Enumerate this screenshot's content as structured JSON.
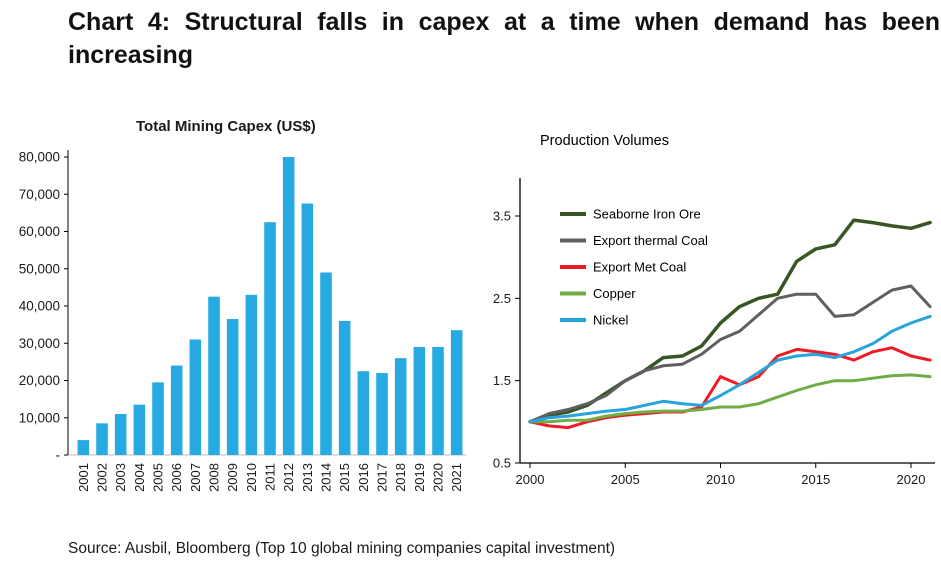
{
  "header": {
    "title": "Chart 4: Structural falls in capex at a time when demand has been increasing"
  },
  "source_note": "Source: Ausbil, Bloomberg (Top 10 global mining companies capital investment)",
  "chart_data": [
    {
      "type": "bar",
      "title": "Total Mining Capex (US$)",
      "categories": [
        "2001",
        "2002",
        "2003",
        "2004",
        "2005",
        "2006",
        "2007",
        "2008",
        "2009",
        "2010",
        "2011",
        "2012",
        "2013",
        "2014",
        "2015",
        "2016",
        "2017",
        "2018",
        "2019",
        "2020",
        "2021"
      ],
      "values": [
        4000,
        8500,
        11000,
        13500,
        19500,
        24000,
        31000,
        42500,
        36500,
        43000,
        62500,
        80000,
        67500,
        49000,
        36000,
        22500,
        22000,
        26000,
        29000,
        29000,
        33500
      ],
      "xlabel": "",
      "ylabel": "",
      "ylim": [
        0,
        80000
      ],
      "ytick_values": [
        0,
        10000,
        20000,
        30000,
        40000,
        50000,
        60000,
        70000,
        80000
      ],
      "ytick_labels": [
        "-",
        "10,000",
        "20,000",
        "30,000",
        "40,000",
        "50,000",
        "60,000",
        "70,000",
        "80,000"
      ],
      "grid": false,
      "bar_color": "#27AAE1"
    },
    {
      "type": "line",
      "title": "Production Volumes",
      "x_start": 2000,
      "x_end": 2021,
      "xtick_values": [
        2000,
        2005,
        2010,
        2015,
        2020
      ],
      "xtick_labels": [
        "2000",
        "2005",
        "2010",
        "2015",
        "2020"
      ],
      "ylim": [
        0.5,
        3.95
      ],
      "ytick_values": [
        0.5,
        1.5,
        2.5,
        3.5
      ],
      "ytick_labels": [
        "0.5",
        "1.5",
        "2.5",
        "3.5"
      ],
      "grid": false,
      "legend_position": "top-left",
      "series": [
        {
          "name": "Seaborne Iron Ore",
          "color": "#375623",
          "values": [
            1.0,
            1.08,
            1.12,
            1.2,
            1.35,
            1.5,
            1.62,
            1.78,
            1.8,
            1.92,
            2.2,
            2.4,
            2.5,
            2.55,
            2.95,
            3.1,
            3.15,
            3.45,
            3.42,
            3.38,
            3.35,
            3.42
          ]
        },
        {
          "name": "Export thermal Coal",
          "color": "#5F5F5F",
          "values": [
            1.0,
            1.1,
            1.15,
            1.22,
            1.32,
            1.5,
            1.62,
            1.68,
            1.7,
            1.82,
            2.0,
            2.1,
            2.3,
            2.5,
            2.55,
            2.55,
            2.28,
            2.3,
            2.45,
            2.6,
            2.65,
            2.4
          ]
        },
        {
          "name": "Export Met Coal",
          "color": "#ED1C24",
          "values": [
            1.0,
            0.95,
            0.93,
            1.0,
            1.05,
            1.08,
            1.1,
            1.12,
            1.12,
            1.18,
            1.55,
            1.45,
            1.55,
            1.8,
            1.88,
            1.85,
            1.82,
            1.75,
            1.85,
            1.9,
            1.8,
            1.75
          ]
        },
        {
          "name": "Copper",
          "color": "#70AD47",
          "values": [
            1.0,
            1.0,
            1.02,
            1.02,
            1.07,
            1.1,
            1.12,
            1.13,
            1.13,
            1.15,
            1.18,
            1.18,
            1.22,
            1.3,
            1.38,
            1.45,
            1.5,
            1.5,
            1.53,
            1.56,
            1.57,
            1.55
          ]
        },
        {
          "name": "Nickel",
          "color": "#29A3DC",
          "values": [
            1.0,
            1.05,
            1.07,
            1.1,
            1.13,
            1.15,
            1.2,
            1.25,
            1.22,
            1.2,
            1.32,
            1.45,
            1.6,
            1.75,
            1.8,
            1.82,
            1.78,
            1.85,
            1.95,
            2.1,
            2.2,
            2.28
          ]
        }
      ]
    }
  ]
}
